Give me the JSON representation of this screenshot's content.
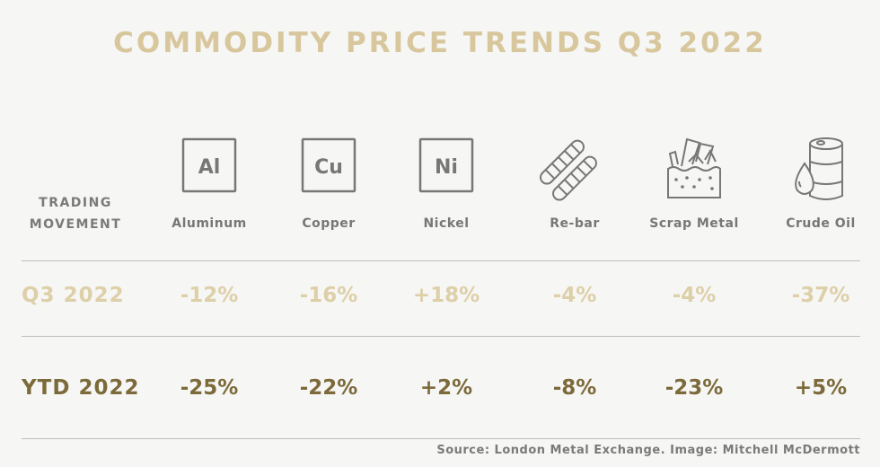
{
  "title": "COMMODITY PRICE TRENDS Q3 2022",
  "row_header": {
    "line1": "TRADING",
    "line2": "MOVEMENT"
  },
  "columns": [
    {
      "name": "Aluminum",
      "icon": "element-box-icon",
      "symbol": "Al"
    },
    {
      "name": "Copper",
      "icon": "element-box-icon",
      "symbol": "Cu"
    },
    {
      "name": "Nickel",
      "icon": "element-box-icon",
      "symbol": "Ni"
    },
    {
      "name": "Re-bar",
      "icon": "rebar-icon"
    },
    {
      "name": "Scrap Metal",
      "icon": "scrap-metal-icon"
    },
    {
      "name": "Crude Oil",
      "icon": "oil-barrel-icon"
    }
  ],
  "rows": [
    {
      "label": "Q3 2022",
      "values": [
        "-12%",
        "-16%",
        "+18%",
        "-4%",
        "-4%",
        "-37%"
      ],
      "color": "#ddcfa8"
    },
    {
      "label": "YTD 2022",
      "values": [
        "-25%",
        "-22%",
        "+2%",
        "-8%",
        "-23%",
        "+5%"
      ],
      "color": "#7c6a3a"
    }
  ],
  "source": "Source: London Metal Exchange. Image: Mitchell McDermott"
}
